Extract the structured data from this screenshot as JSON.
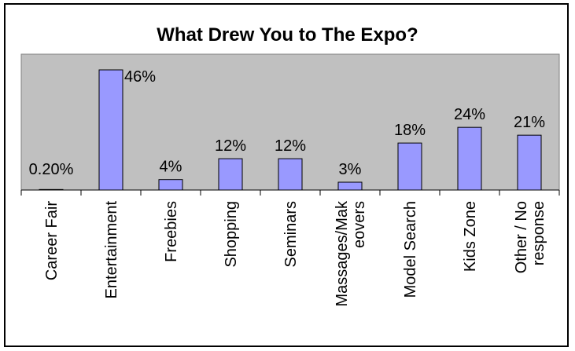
{
  "chart_data": {
    "type": "bar",
    "title": "What Drew You to The Expo?",
    "categories": [
      "Career Fair",
      "Entertainment",
      "Freebies",
      "Shopping",
      "Seminars",
      "Massages/Makeovers",
      "Model Search",
      "Kids Zone",
      "Other / No response"
    ],
    "category_label_lines": [
      [
        "Career Fair"
      ],
      [
        "Entertainment"
      ],
      [
        "Freebies"
      ],
      [
        "Shopping"
      ],
      [
        "Seminars"
      ],
      [
        "Massages/Mak",
        "eovers"
      ],
      [
        "Model Search"
      ],
      [
        "Kids Zone"
      ],
      [
        "Other / No",
        "response"
      ]
    ],
    "values": [
      0.2,
      46,
      4,
      12,
      12,
      3,
      18,
      24,
      21
    ],
    "data_labels": [
      "0.20%",
      "46%",
      "4%",
      "12%",
      "12%",
      "3%",
      "18%",
      "24%",
      "21%"
    ],
    "ylim": [
      0,
      46
    ],
    "xlabel": "",
    "ylabel": "",
    "legend": "none",
    "grid": false,
    "colors": {
      "plot_background": "#c0c0c0",
      "bar_fill": "#9999ff",
      "bar_stroke": "#000000",
      "frame": "#000000"
    }
  }
}
